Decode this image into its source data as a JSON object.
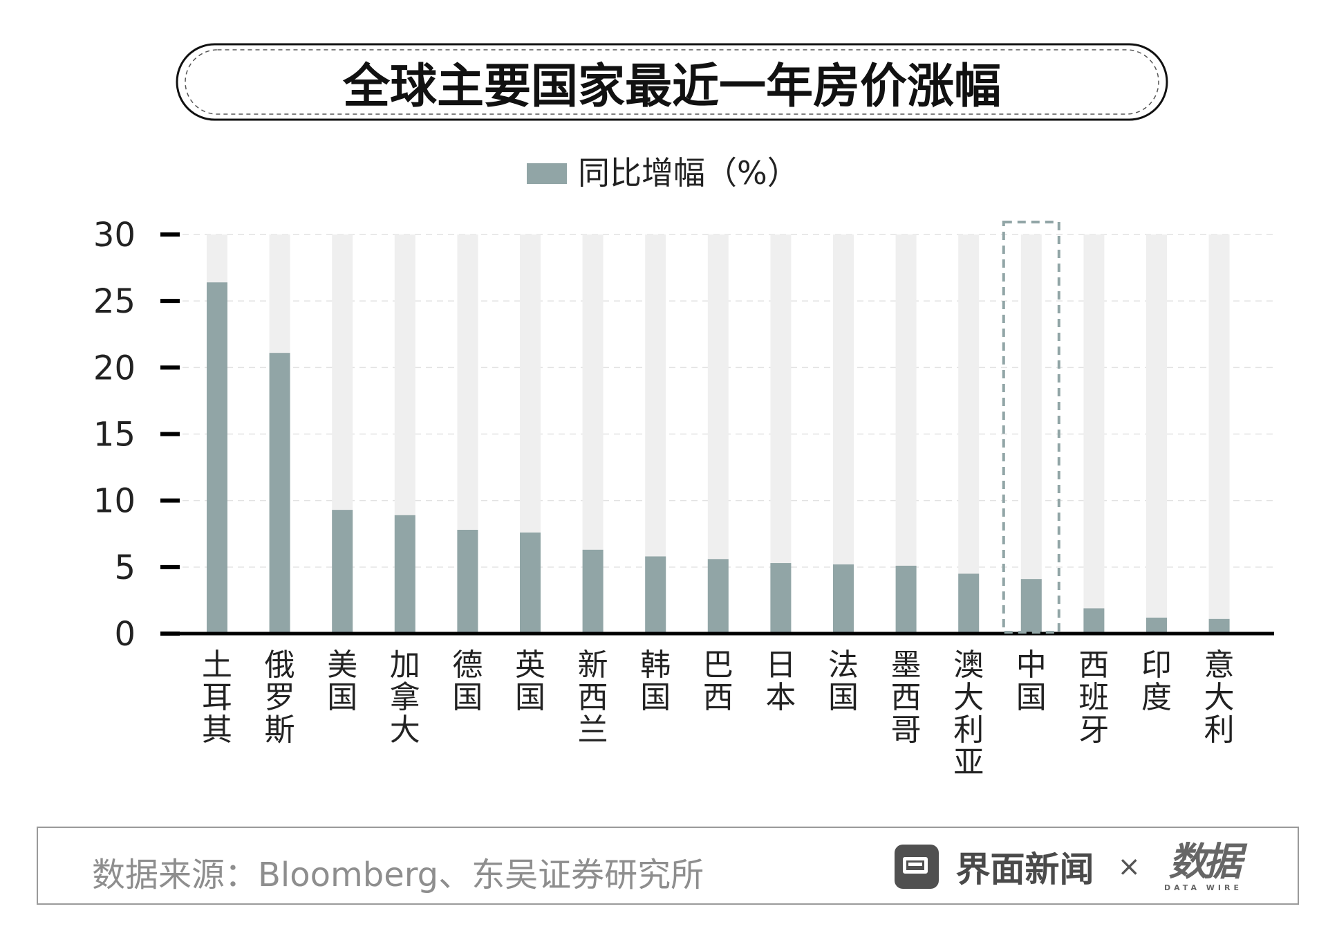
{
  "chart_data": {
    "type": "bar",
    "title": "全球主要国家最近一年房价涨幅",
    "legend": {
      "label": "同比增幅（%）",
      "placement": "top-center"
    },
    "categories": [
      "土耳其",
      "俄罗斯",
      "美国",
      "加拿大",
      "德国",
      "英国",
      "新西兰",
      "韩国",
      "巴西",
      "日本",
      "法国",
      "墨西哥",
      "澳大利亚",
      "中国",
      "西班牙",
      "印度",
      "意大利"
    ],
    "series": [
      {
        "name": "同比增幅（%）",
        "values": [
          26.4,
          21.1,
          9.3,
          8.9,
          7.8,
          7.6,
          6.3,
          5.8,
          5.6,
          5.3,
          5.2,
          5.1,
          4.5,
          4.1,
          1.9,
          1.2,
          1.1
        ]
      }
    ],
    "ylim": [
      0,
      30
    ],
    "yticks": [
      "0",
      "5",
      "10",
      "15",
      "20",
      "25",
      "30"
    ],
    "xlabel": "",
    "ylabel": "",
    "grid": true,
    "highlight_category": "中国",
    "colors": {
      "bar": "#91a5a6",
      "track": "#efefef",
      "highlight_box": "#91a5a6",
      "axis": "#000000"
    }
  },
  "footer": {
    "source": "数据来源：Bloomberg、东吴证券研究所",
    "brand_name": "界面新闻",
    "brand_times": "×",
    "brand_mark": "数据",
    "brand_mark_sub": "DATA WIRE"
  }
}
